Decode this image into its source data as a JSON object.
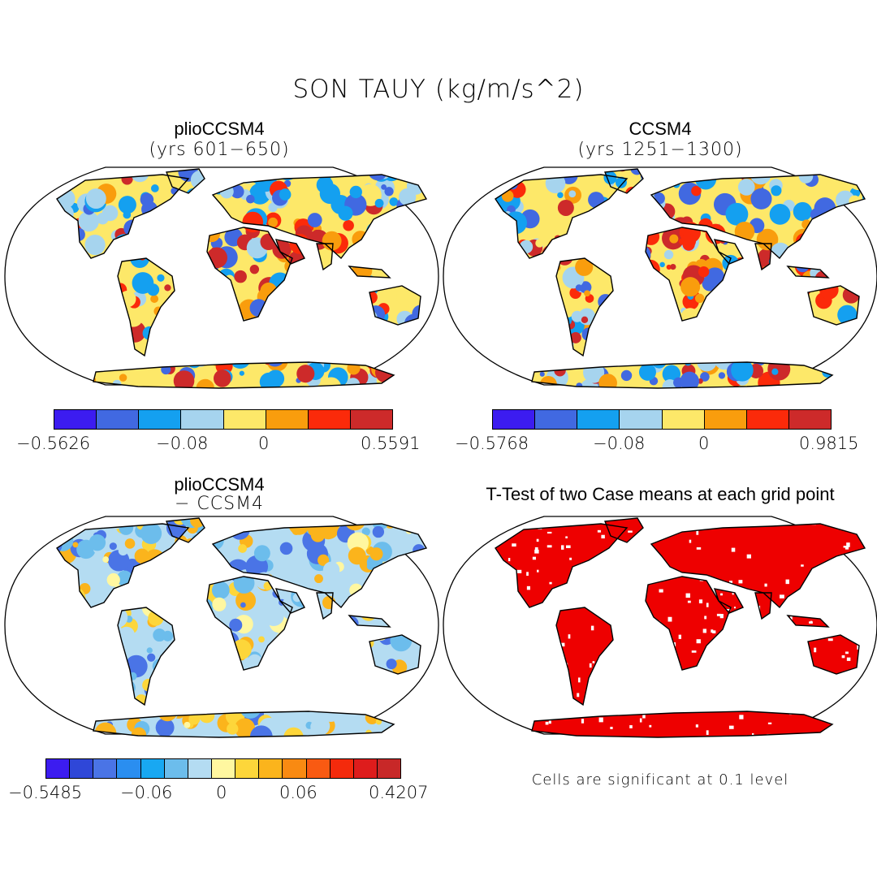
{
  "title": "SON TAUY (kg/m/s^2)",
  "panels": {
    "top_left": {
      "title": "plioCCSM4",
      "subtitle": "(yrs 601−650)"
    },
    "top_right": {
      "title": "CCSM4",
      "subtitle": "(yrs 1251−1300)"
    },
    "bottom_left": {
      "title": "plioCCSM4",
      "subtitle": "− CCSM4"
    },
    "bottom_right": {
      "title": "T-Test of two Case means at each grid point",
      "note": "Cells are significant at 0.1 level"
    }
  },
  "colorbars": {
    "top_left": {
      "colors": [
        "#3c1cf0",
        "#4169e1",
        "#14a0f0",
        "#a6d4ee",
        "#fde869",
        "#f99d0d",
        "#fb2a0a",
        "#cd2a2a"
      ],
      "ticks": [
        "−0.5626",
        "−0.08",
        "0",
        "0.5591"
      ]
    },
    "top_right": {
      "colors": [
        "#3c1cf0",
        "#4169e1",
        "#14a0f0",
        "#a6d4ee",
        "#fde869",
        "#f99d0d",
        "#fb2a0a",
        "#cd2a2a"
      ],
      "ticks": [
        "−0.5768",
        "−0.08",
        "0",
        "0.9815"
      ]
    },
    "bottom_left": {
      "colors": [
        "#3c1cf0",
        "#2f47d8",
        "#4a74e6",
        "#2a8ef0",
        "#18a8f2",
        "#6cbdec",
        "#b4dcf2",
        "#fff7a0",
        "#fdd63a",
        "#fbb41c",
        "#f98a12",
        "#f95a12",
        "#f42a0c",
        "#de1c1c",
        "#c82828"
      ],
      "ticks": [
        "−0.5485",
        "−0.06",
        "0",
        "0.06",
        "0.4207"
      ]
    }
  },
  "ttest_color": "#ee0000"
}
